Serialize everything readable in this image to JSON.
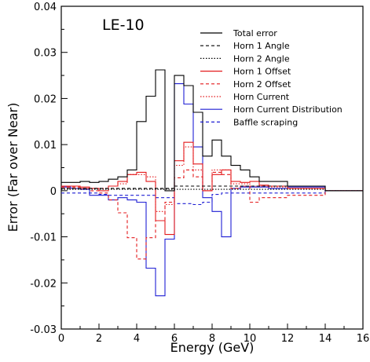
{
  "chart_data": {
    "type": "line",
    "title": "LE-10",
    "xlabel": "Energy (GeV)",
    "ylabel": "Error (Far over Near)",
    "xlim": [
      0,
      16
    ],
    "ylim": [
      -0.03,
      0.04
    ],
    "x_ticks": [
      0,
      2,
      4,
      6,
      8,
      10,
      12,
      14,
      16
    ],
    "y_ticks": [
      -0.03,
      -0.02,
      -0.01,
      0,
      0.01,
      0.02,
      0.03,
      0.04
    ],
    "x_tick_labels": [
      "0",
      "2",
      "4",
      "6",
      "8",
      "10",
      "12",
      "14",
      "16"
    ],
    "y_tick_labels": [
      "-0.03",
      "-0.02",
      "-0.01",
      "0",
      "0.01",
      "0.02",
      "0.03",
      "0.04"
    ],
    "bin_edges": [
      0,
      0.5,
      1,
      1.5,
      2,
      2.5,
      3,
      3.5,
      4,
      4.5,
      5,
      5.5,
      6,
      6.5,
      7,
      7.5,
      8,
      8.5,
      9,
      9.5,
      10,
      10.5,
      11,
      11.5,
      12,
      14,
      16
    ],
    "legend_position": "top-right",
    "series": [
      {
        "name": "Total error",
        "color": "#000000",
        "dash": "solid",
        "values": [
          0.0018,
          0.0018,
          0.002,
          0.0018,
          0.002,
          0.0025,
          0.003,
          0.0045,
          0.015,
          0.0205,
          0.0262,
          0.0,
          0.025,
          0.0228,
          0.017,
          0.0075,
          0.011,
          0.0075,
          0.0055,
          0.0045,
          0.003,
          0.002,
          0.002,
          0.002,
          0.001,
          0.0,
          0.0
        ]
      },
      {
        "name": "Horn 1 Angle",
        "color": "#000000",
        "dash": "4,3",
        "values": [
          0.0005,
          0.0005,
          0.0005,
          0.0005,
          0.0005,
          0.0005,
          0.0005,
          0.0005,
          0.0005,
          0.0005,
          0.0005,
          0.0005,
          0.001,
          0.001,
          0.001,
          0.001,
          0.001,
          0.001,
          0.001,
          0.001,
          0.001,
          0.001,
          0.001,
          0.001,
          0.001,
          0.0,
          0.0
        ]
      },
      {
        "name": "Horn 2 Angle",
        "color": "#000000",
        "dash": "1.5,2",
        "values": [
          0.0003,
          0.0003,
          0.0003,
          0.0003,
          0.0003,
          0.0003,
          0.0003,
          0.0003,
          0.0003,
          0.0003,
          0.0003,
          0.0003,
          0.0003,
          0.0003,
          0.0003,
          0.0003,
          0.0003,
          0.0003,
          0.0003,
          0.0003,
          0.0003,
          0.0003,
          0.0003,
          0.0003,
          0.0003,
          0.0,
          0.0
        ]
      },
      {
        "name": "Horn 1 Offset",
        "color": "#e41a1c",
        "dash": "solid",
        "values": [
          0.001,
          0.001,
          0.0008,
          0.0005,
          0.0,
          0.001,
          0.002,
          0.0035,
          0.004,
          0.002,
          -0.0065,
          -0.0095,
          0.0065,
          0.0105,
          0.0058,
          0.0,
          0.0035,
          0.0045,
          0.002,
          0.0018,
          0.002,
          0.0012,
          0.001,
          0.001,
          0.0005,
          0.0,
          0.0
        ]
      },
      {
        "name": "Horn 2 Offset",
        "color": "#e41a1c",
        "dash": "4,3",
        "values": [
          0.0008,
          0.0008,
          0.0005,
          0.0,
          -0.0005,
          -0.002,
          -0.0048,
          -0.0102,
          -0.0148,
          -0.0102,
          -0.0065,
          -0.0025,
          0.0028,
          0.0045,
          0.003,
          0.0,
          0.004,
          0.0035,
          0.0005,
          0.001,
          -0.0025,
          -0.0015,
          -0.0015,
          -0.0015,
          -0.001,
          0.0,
          0.0
        ]
      },
      {
        "name": "Horn Current",
        "color": "#e41a1c",
        "dash": "1.5,2",
        "values": [
          0.0005,
          0.0005,
          0.0005,
          0.0005,
          0.0005,
          0.001,
          0.0015,
          0.0035,
          0.0035,
          0.003,
          -0.0045,
          -0.003,
          0.0055,
          0.0095,
          0.0045,
          0.0,
          0.0045,
          0.0045,
          0.0015,
          0.0015,
          0.001,
          0.001,
          0.0008,
          0.0008,
          0.0005,
          0.0,
          0.0
        ]
      },
      {
        "name": "Horn Current Distribution",
        "color": "#1f1fd4",
        "dash": "solid",
        "values": [
          0.0008,
          0.0005,
          0.0003,
          -0.001,
          -0.001,
          -0.002,
          -0.0015,
          -0.002,
          -0.0025,
          -0.0168,
          -0.0228,
          -0.0105,
          0.0232,
          0.0188,
          0.0095,
          -0.0015,
          -0.0045,
          -0.01,
          0.0005,
          0.0008,
          0.0008,
          0.0008,
          0.0005,
          0.0005,
          0.0008,
          0.0,
          0.0
        ]
      },
      {
        "name": "Baffle scraping",
        "color": "#1f1fd4",
        "dash": "4,3",
        "values": [
          -0.0005,
          -0.0005,
          -0.0005,
          -0.0005,
          -0.0008,
          -0.001,
          -0.001,
          -0.001,
          -0.001,
          -0.001,
          -0.0015,
          -0.0015,
          -0.0028,
          -0.0028,
          -0.003,
          -0.0025,
          -0.0008,
          -0.0005,
          -0.0005,
          -0.0005,
          -0.0005,
          -0.0005,
          -0.0005,
          -0.0005,
          -0.0005,
          0.0,
          0.0
        ]
      }
    ]
  }
}
